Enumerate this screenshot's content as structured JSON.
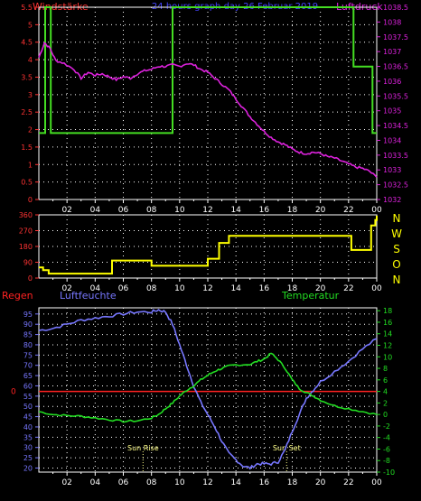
{
  "header": {
    "title": "24 hours graph day 26 Februar 2019",
    "left_label": "Windstärke",
    "right_label": "Luftdruck"
  },
  "legend": {
    "regen": "Regen",
    "luftfeuchte": "Luftfeuchte",
    "temperatur": "Temperatur",
    "sunrise": "Sun Rise",
    "sunset": "Sun Set"
  },
  "colors": {
    "windstaerke": "#44dd22",
    "luftdruck": "#dd22dd",
    "richtung": "#ffff00",
    "luftfeuchte": "#7777ff",
    "temperatur": "#22dd22",
    "regen": "#ff2222"
  },
  "chart_data": [
    {
      "type": "line",
      "title": "24 hours graph day 26 Februar 2019",
      "x_ticks": [
        "02",
        "04",
        "06",
        "08",
        "10",
        "12",
        "14",
        "16",
        "18",
        "20",
        "22",
        "00"
      ],
      "xlim": [
        0,
        24
      ],
      "grid": true,
      "left_axis": {
        "label": "Windstärke",
        "ticks": [
          0,
          0.5,
          1,
          1.5,
          2,
          2.5,
          3,
          3.5,
          4,
          4.5,
          5,
          5.5
        ],
        "ylim": [
          0,
          5.5
        ]
      },
      "right_axis": {
        "label": "Luftdruck",
        "ticks": [
          1032,
          1032.5,
          1033,
          1033.5,
          1034,
          1034.5,
          1035,
          1035.5,
          1036,
          1036.5,
          1037,
          1037.5,
          1038,
          1038.5
        ],
        "ylim": [
          1032,
          1038.5
        ]
      },
      "series": [
        {
          "name": "Windstärke",
          "axis": "left",
          "step": true,
          "points": [
            [
              0,
              1.9
            ],
            [
              0.45,
              5.5
            ],
            [
              0.85,
              1.9
            ],
            [
              9.5,
              5.5
            ],
            [
              22.35,
              3.8
            ],
            [
              23.7,
              1.9
            ],
            [
              24,
              1.9
            ]
          ]
        },
        {
          "name": "Luftdruck",
          "axis": "right",
          "points": [
            [
              0,
              1036.8
            ],
            [
              0.4,
              1037.3
            ],
            [
              0.8,
              1037.1
            ],
            [
              1.2,
              1036.7
            ],
            [
              1.8,
              1036.6
            ],
            [
              2.5,
              1036.4
            ],
            [
              3,
              1036.1
            ],
            [
              3.5,
              1036.3
            ],
            [
              4,
              1036.2
            ],
            [
              4.5,
              1036.25
            ],
            [
              5,
              1036.15
            ],
            [
              5.5,
              1036.05
            ],
            [
              6,
              1036.15
            ],
            [
              6.5,
              1036.1
            ],
            [
              7,
              1036.25
            ],
            [
              7.5,
              1036.35
            ],
            [
              8,
              1036.4
            ],
            [
              8.5,
              1036.5
            ],
            [
              9,
              1036.5
            ],
            [
              9.5,
              1036.55
            ],
            [
              10,
              1036.5
            ],
            [
              10.5,
              1036.6
            ],
            [
              11,
              1036.55
            ],
            [
              11.5,
              1036.4
            ],
            [
              12,
              1036.3
            ],
            [
              12.5,
              1036.1
            ],
            [
              13,
              1035.9
            ],
            [
              13.5,
              1035.7
            ],
            [
              14,
              1035.4
            ],
            [
              14.5,
              1035.1
            ],
            [
              15,
              1034.8
            ],
            [
              15.5,
              1034.55
            ],
            [
              16,
              1034.3
            ],
            [
              16.5,
              1034.1
            ],
            [
              17,
              1033.95
            ],
            [
              17.5,
              1033.85
            ],
            [
              18,
              1033.7
            ],
            [
              18.5,
              1033.6
            ],
            [
              19,
              1033.55
            ],
            [
              19.5,
              1033.6
            ],
            [
              20,
              1033.55
            ],
            [
              20.5,
              1033.45
            ],
            [
              21,
              1033.4
            ],
            [
              21.5,
              1033.3
            ],
            [
              22,
              1033.2
            ],
            [
              22.5,
              1033.1
            ],
            [
              23,
              1033.05
            ],
            [
              23.5,
              1032.95
            ],
            [
              24,
              1032.75
            ]
          ]
        }
      ]
    },
    {
      "type": "line",
      "title": "",
      "x_ticks": [
        "02",
        "04",
        "06",
        "08",
        "10",
        "12",
        "14",
        "16",
        "18",
        "20",
        "22",
        "00"
      ],
      "xlim": [
        0,
        24
      ],
      "grid": true,
      "left_axis": {
        "ticks": [
          0,
          90,
          180,
          270,
          360
        ],
        "ylim": [
          0,
          360
        ]
      },
      "right_axis": {
        "ticks": [
          "N",
          "W",
          "S",
          "O",
          "N"
        ]
      },
      "series": [
        {
          "name": "",
          "step": true,
          "points": [
            [
              0,
              60
            ],
            [
              0.3,
              45
            ],
            [
              0.7,
              25
            ],
            [
              5,
              25
            ],
            [
              5.2,
              100
            ],
            [
              7.8,
              100
            ],
            [
              8,
              70
            ],
            [
              11.8,
              70
            ],
            [
              12,
              110
            ],
            [
              12.6,
              110
            ],
            [
              12.8,
              200
            ],
            [
              13.3,
              200
            ],
            [
              13.5,
              240
            ],
            [
              22,
              240
            ],
            [
              22.2,
              160
            ],
            [
              23.5,
              160
            ],
            [
              23.6,
              300
            ],
            [
              23.9,
              330
            ],
            [
              24,
              355
            ]
          ]
        }
      ]
    },
    {
      "type": "line",
      "title": "",
      "x_ticks": [
        "02",
        "04",
        "06",
        "08",
        "10",
        "12",
        "14",
        "16",
        "18",
        "20",
        "22",
        "00"
      ],
      "xlim": [
        0,
        24
      ],
      "grid": true,
      "left_axis": {
        "label": "Luftfeuchte",
        "ticks": [
          20,
          25,
          30,
          35,
          40,
          45,
          50,
          55,
          60,
          65,
          70,
          75,
          80,
          85,
          90,
          95
        ],
        "ylim": [
          18,
          98
        ]
      },
      "right_axis": {
        "label": "Temperatur",
        "ticks": [
          -10,
          -8,
          -6,
          -4,
          -2,
          0,
          2,
          4,
          6,
          8,
          10,
          12,
          14,
          16,
          18
        ],
        "ylim": [
          -10,
          18.5
        ]
      },
      "regen_marker": {
        "label": "0"
      },
      "annotations": [
        {
          "text": "Sun Rise",
          "x": 7.4
        },
        {
          "text": "Sun Set",
          "x": 17.6
        }
      ],
      "series": [
        {
          "name": "Luftfeuchte",
          "axis": "left",
          "points": [
            [
              0,
              87
            ],
            [
              1,
              88
            ],
            [
              2,
              90
            ],
            [
              3,
              92
            ],
            [
              4,
              93
            ],
            [
              5,
              94
            ],
            [
              6,
              95
            ],
            [
              7,
              96
            ],
            [
              8,
              96
            ],
            [
              8.5,
              97
            ],
            [
              9,
              96
            ],
            [
              9.5,
              90
            ],
            [
              10,
              80
            ],
            [
              10.5,
              70
            ],
            [
              11,
              60
            ],
            [
              11.5,
              52
            ],
            [
              12,
              46
            ],
            [
              12.5,
              40
            ],
            [
              13,
              33
            ],
            [
              13.5,
              27
            ],
            [
              14,
              24
            ],
            [
              14.5,
              21
            ],
            [
              15,
              20
            ],
            [
              15.5,
              22
            ],
            [
              16,
              22
            ],
            [
              16.5,
              22
            ],
            [
              17,
              23
            ],
            [
              17.5,
              29
            ],
            [
              18,
              38
            ],
            [
              18.5,
              46
            ],
            [
              19,
              54
            ],
            [
              19.5,
              58
            ],
            [
              20,
              62
            ],
            [
              21,
              67
            ],
            [
              22,
              72
            ],
            [
              23,
              78
            ],
            [
              24,
              83
            ]
          ]
        },
        {
          "name": "Temperatur",
          "axis": "right",
          "points": [
            [
              0,
              0.5
            ],
            [
              1,
              0
            ],
            [
              2,
              -0.2
            ],
            [
              3,
              -0.3
            ],
            [
              4,
              -0.6
            ],
            [
              5,
              -0.9
            ],
            [
              6,
              -1.2
            ],
            [
              7,
              -1.1
            ],
            [
              8,
              -0.6
            ],
            [
              8.5,
              0
            ],
            [
              9,
              1
            ],
            [
              9.5,
              2
            ],
            [
              10,
              3.2
            ],
            [
              10.5,
              4.2
            ],
            [
              11,
              5
            ],
            [
              11.5,
              6
            ],
            [
              12,
              6.8
            ],
            [
              12.5,
              7.5
            ],
            [
              13,
              8
            ],
            [
              13.5,
              8.4
            ],
            [
              14,
              8.6
            ],
            [
              15,
              8.7
            ],
            [
              15.5,
              9.2
            ],
            [
              16,
              9.6
            ],
            [
              16.5,
              10.6
            ],
            [
              17,
              9.5
            ],
            [
              17.5,
              8
            ],
            [
              18,
              6
            ],
            [
              18.5,
              4.5
            ],
            [
              19,
              3.8
            ],
            [
              19.5,
              3.2
            ],
            [
              20,
              2.5
            ],
            [
              21,
              1.5
            ],
            [
              22,
              1
            ],
            [
              23,
              0.5
            ],
            [
              24,
              0
            ]
          ]
        }
      ]
    }
  ]
}
